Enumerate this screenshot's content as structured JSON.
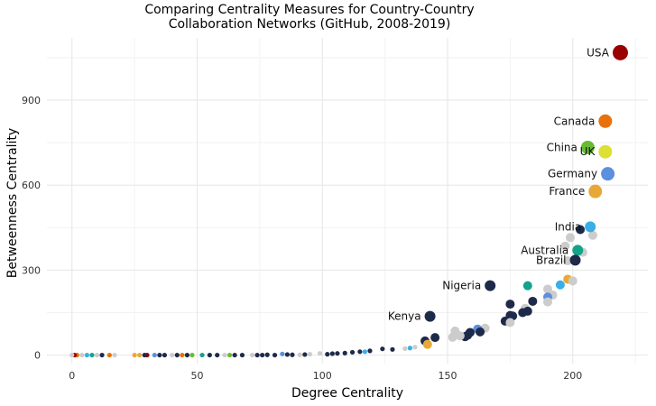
{
  "chart_data": {
    "type": "scatter",
    "title_lines": [
      "Comparing Centrality Measures for Country-Country",
      "Collaboration Networks (GitHub, 2008-2019)"
    ],
    "xlabel": "Degree Centrality",
    "ylabel": "Betweenness Centrality",
    "xlim": [
      -10,
      230
    ],
    "ylim": [
      -30,
      1120
    ],
    "x_ticks": [
      0,
      50,
      100,
      150,
      200
    ],
    "y_ticks": [
      0,
      300,
      600,
      900
    ],
    "grid": true,
    "legend": "none",
    "colors": {
      "grey": "#cccccc",
      "navy": "#1e2a4a",
      "darkred": "#990000",
      "orange": "#e8710a",
      "green": "#66bb33",
      "yellow": "#dde033",
      "blue": "#5b8fdf",
      "gold": "#e8a838",
      "sky": "#3aaee8",
      "teal": "#13a38a"
    },
    "labeled_points": [
      {
        "label": "USA",
        "x": 219,
        "y": 1068,
        "color": "darkred"
      },
      {
        "label": "Canada",
        "x": 213,
        "y": 826,
        "color": "orange"
      },
      {
        "label": "China",
        "x": 206,
        "y": 733,
        "color": "green"
      },
      {
        "label": "UK",
        "x": 213,
        "y": 718,
        "color": "yellow"
      },
      {
        "label": "Germany",
        "x": 214,
        "y": 640,
        "color": "blue"
      },
      {
        "label": "France",
        "x": 209,
        "y": 578,
        "color": "gold"
      },
      {
        "label": "India",
        "x": 207,
        "y": 453,
        "color": "sky"
      },
      {
        "label": "Australia",
        "x": 202,
        "y": 370,
        "color": "teal"
      },
      {
        "label": "Brazil",
        "x": 201,
        "y": 335,
        "color": "navy"
      },
      {
        "label": "Nigeria",
        "x": 167,
        "y": 245,
        "color": "navy"
      },
      {
        "label": "Kenya",
        "x": 143,
        "y": 137,
        "color": "navy"
      }
    ],
    "points": [
      [
        208,
        423,
        "grey"
      ],
      [
        199,
        415,
        "grey"
      ],
      [
        203,
        443,
        "navy"
      ],
      [
        197,
        385,
        "grey"
      ],
      [
        204,
        363,
        "grey"
      ],
      [
        198,
        333,
        "grey"
      ],
      [
        198,
        268,
        "gold"
      ],
      [
        200,
        262,
        "grey"
      ],
      [
        195,
        248,
        "sky"
      ],
      [
        182,
        245,
        "teal"
      ],
      [
        190,
        233,
        "grey"
      ],
      [
        192,
        212,
        "grey"
      ],
      [
        190,
        205,
        "blue"
      ],
      [
        190,
        188,
        "grey"
      ],
      [
        184,
        190,
        "navy"
      ],
      [
        175,
        180,
        "navy"
      ],
      [
        181,
        165,
        "grey"
      ],
      [
        182,
        155,
        "navy"
      ],
      [
        180,
        150,
        "navy"
      ],
      [
        175,
        140,
        "navy"
      ],
      [
        176,
        138,
        "navy"
      ],
      [
        173,
        120,
        "navy"
      ],
      [
        175,
        115,
        "grey"
      ],
      [
        165,
        95,
        "grey"
      ],
      [
        162,
        92,
        "blue"
      ],
      [
        163,
        82,
        "navy"
      ],
      [
        159,
        80,
        "navy"
      ],
      [
        158,
        70,
        "navy"
      ],
      [
        157,
        65,
        "navy"
      ],
      [
        155,
        68,
        "grey"
      ],
      [
        152,
        63,
        "grey"
      ],
      [
        153,
        85,
        "grey"
      ],
      [
        145,
        62,
        "navy"
      ],
      [
        141,
        50,
        "navy"
      ],
      [
        142,
        38,
        "gold"
      ],
      [
        137,
        28,
        "grey"
      ],
      [
        135,
        25,
        "sky"
      ],
      [
        133,
        23,
        "grey"
      ],
      [
        128,
        20,
        "navy"
      ],
      [
        124,
        22,
        "navy"
      ],
      [
        119,
        15,
        "navy"
      ],
      [
        117,
        12,
        "sky"
      ],
      [
        115,
        12,
        "navy"
      ],
      [
        112,
        10,
        "navy"
      ],
      [
        109,
        7,
        "navy"
      ],
      [
        106,
        6,
        "navy"
      ],
      [
        104,
        5,
        "navy"
      ],
      [
        102,
        3,
        "navy"
      ],
      [
        99,
        6,
        "grey"
      ],
      [
        95,
        3,
        "grey"
      ],
      [
        93,
        2,
        "navy"
      ],
      [
        91,
        1,
        "grey"
      ],
      [
        88,
        1,
        "navy"
      ],
      [
        86,
        2,
        "navy"
      ],
      [
        84,
        4,
        "blue"
      ],
      [
        81,
        0,
        "navy"
      ],
      [
        78,
        1,
        "navy"
      ],
      [
        76,
        0,
        "navy"
      ],
      [
        74,
        0,
        "navy"
      ],
      [
        72,
        0,
        "grey"
      ],
      [
        68,
        0,
        "navy"
      ],
      [
        65,
        0,
        "navy"
      ],
      [
        63,
        0,
        "green"
      ],
      [
        61,
        0,
        "grey"
      ],
      [
        58,
        0,
        "navy"
      ],
      [
        55,
        0,
        "navy"
      ],
      [
        52,
        0,
        "teal"
      ],
      [
        48,
        0,
        "green"
      ],
      [
        46,
        0,
        "navy"
      ],
      [
        44,
        0,
        "orange"
      ],
      [
        42,
        0,
        "navy"
      ],
      [
        40,
        0,
        "grey"
      ],
      [
        37,
        0,
        "navy"
      ],
      [
        35,
        0,
        "navy"
      ],
      [
        33,
        0,
        "blue"
      ],
      [
        30,
        0,
        "darkred"
      ],
      [
        29,
        0,
        "navy"
      ],
      [
        27,
        0,
        "gold"
      ],
      [
        25,
        0,
        "gold"
      ],
      [
        17,
        0,
        "grey"
      ],
      [
        15,
        0,
        "orange"
      ],
      [
        12,
        0,
        "navy"
      ],
      [
        10,
        0,
        "grey"
      ],
      [
        8,
        0,
        "teal"
      ],
      [
        6,
        0,
        "sky"
      ],
      [
        4,
        0,
        "grey"
      ],
      [
        2,
        0,
        "orange"
      ],
      [
        1,
        0,
        "darkred"
      ],
      [
        0,
        0,
        "grey"
      ]
    ]
  }
}
